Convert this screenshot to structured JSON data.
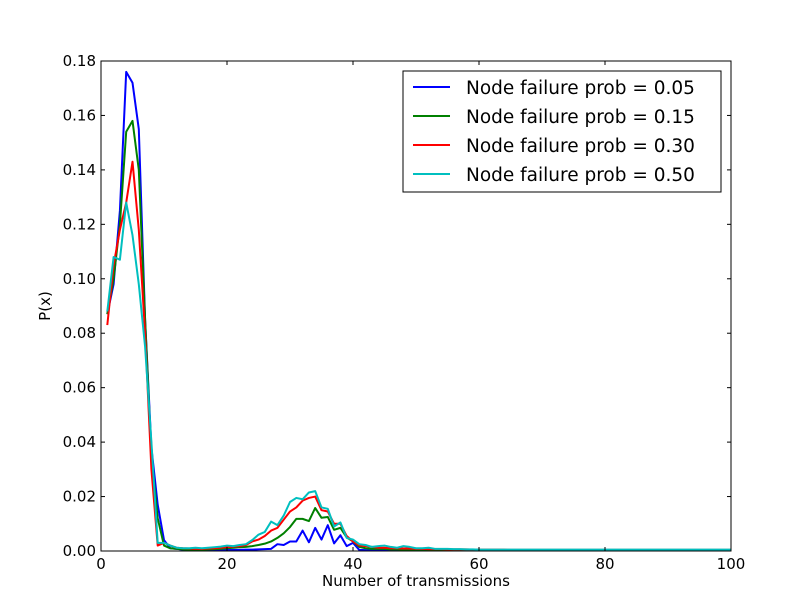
{
  "chart_data": {
    "type": "line",
    "title": "",
    "xlabel": "Number of transmissions",
    "ylabel": "P(x)",
    "xlim": [
      0,
      100
    ],
    "ylim": [
      0,
      0.18
    ],
    "xticks": [
      "0",
      "20",
      "40",
      "60",
      "80",
      "100"
    ],
    "yticks": [
      "0.00",
      "0.02",
      "0.04",
      "0.06",
      "0.08",
      "0.10",
      "0.12",
      "0.14",
      "0.16",
      "0.18"
    ],
    "grid": false,
    "legend_position": "top-right",
    "x": [
      1,
      2,
      3,
      4,
      5,
      6,
      7,
      8,
      9,
      10,
      11,
      12,
      13,
      14,
      15,
      16,
      17,
      18,
      19,
      20,
      21,
      22,
      23,
      24,
      25,
      26,
      27,
      28,
      29,
      30,
      31,
      32,
      33,
      34,
      35,
      36,
      37,
      38,
      39,
      40,
      41,
      42,
      43,
      44,
      45,
      46,
      47,
      48,
      49,
      50,
      51,
      52,
      53,
      54,
      55,
      56,
      57,
      58,
      59,
      60,
      61,
      62,
      63,
      64,
      65,
      66,
      67,
      68,
      69,
      70,
      71,
      72,
      73,
      74,
      75,
      76,
      77,
      78,
      79,
      80,
      81,
      82,
      83,
      84,
      85,
      86,
      87,
      88,
      89,
      90,
      91,
      92,
      93,
      94,
      95,
      96,
      97,
      98,
      99,
      100
    ],
    "series": [
      {
        "name": "Node failure prob = 0.05",
        "color": "#0000ff",
        "values": [
          0.087,
          0.098,
          0.125,
          0.176,
          0.172,
          0.155,
          0.085,
          0.038,
          0.017,
          0.004,
          0.001,
          0.0008,
          0.0005,
          0.0004,
          0.0004,
          0.0003,
          0.0003,
          0.0003,
          0.0003,
          0.0004,
          0.0004,
          0.0004,
          0.0005,
          0.0005,
          0.0006,
          0.0007,
          0.0008,
          0.0025,
          0.0022,
          0.0035,
          0.0035,
          0.0075,
          0.0032,
          0.0085,
          0.0042,
          0.0095,
          0.0028,
          0.0058,
          0.0018,
          0.003,
          0.0004,
          0.0003,
          0.0002,
          0.0002,
          0.0002,
          0.0002,
          0.0002,
          0.0002,
          0.0002,
          0.0002,
          0.0002,
          0.0002,
          0.0002,
          0.0002,
          0.0002,
          0.0002,
          0.0002,
          0.0002,
          0.0002,
          0.0002,
          0.0002,
          0.0002,
          0.0002,
          0.0002,
          0.0002,
          0.0002,
          0.0002,
          0.0002,
          0.0002,
          0.0002,
          0.0002,
          0.0002,
          0.0002,
          0.0002,
          0.0002,
          0.0002,
          0.0002,
          0.0002,
          0.0002,
          0.0002,
          0.0002,
          0.0002,
          0.0002,
          0.0002,
          0.0002,
          0.0002,
          0.0002,
          0.0002,
          0.0002,
          0.0002,
          0.0002,
          0.0002,
          0.0002,
          0.0002,
          0.0002,
          0.0002,
          0.0002,
          0.0002,
          0.0002,
          0.0002
        ]
      },
      {
        "name": "Node failure prob = 0.15",
        "color": "#008000",
        "values": [
          0.087,
          0.1,
          0.12,
          0.154,
          0.158,
          0.14,
          0.085,
          0.035,
          0.012,
          0.002,
          0.001,
          0.0008,
          0.0006,
          0.0005,
          0.0005,
          0.0005,
          0.0006,
          0.0007,
          0.0008,
          0.001,
          0.0012,
          0.0014,
          0.0015,
          0.0018,
          0.0022,
          0.0027,
          0.0035,
          0.0048,
          0.0065,
          0.0088,
          0.0118,
          0.0118,
          0.011,
          0.0158,
          0.0122,
          0.0125,
          0.0078,
          0.0085,
          0.005,
          0.0035,
          0.0015,
          0.001,
          0.0008,
          0.0008,
          0.0008,
          0.0006,
          0.0006,
          0.0005,
          0.0005,
          0.0004,
          0.0004,
          0.0004,
          0.0004,
          0.0004,
          0.0004,
          0.0004,
          0.0004,
          0.0003,
          0.0003,
          0.0003,
          0.0003,
          0.0003,
          0.0003,
          0.0003,
          0.0003,
          0.0003,
          0.0003,
          0.0003,
          0.0003,
          0.0003,
          0.0003,
          0.0003,
          0.0003,
          0.0003,
          0.0003,
          0.0003,
          0.0003,
          0.0003,
          0.0003,
          0.0003,
          0.0003,
          0.0003,
          0.0003,
          0.0003,
          0.0003,
          0.0003,
          0.0003,
          0.0003,
          0.0003,
          0.0003,
          0.0003,
          0.0003,
          0.0003,
          0.0003,
          0.0003,
          0.0003,
          0.0003,
          0.0003,
          0.0003,
          0.0003
        ]
      },
      {
        "name": "Node failure prob = 0.30",
        "color": "#ff0000",
        "values": [
          0.083,
          0.105,
          0.118,
          0.128,
          0.143,
          0.118,
          0.08,
          0.03,
          0.002,
          0.003,
          0.002,
          0.0012,
          0.001,
          0.0009,
          0.0008,
          0.0008,
          0.0009,
          0.001,
          0.0012,
          0.0014,
          0.0016,
          0.0018,
          0.0022,
          0.0035,
          0.0042,
          0.0055,
          0.0075,
          0.0085,
          0.0115,
          0.0145,
          0.016,
          0.0185,
          0.0195,
          0.02,
          0.015,
          0.0145,
          0.01,
          0.01,
          0.0055,
          0.0035,
          0.002,
          0.0018,
          0.0015,
          0.0012,
          0.0012,
          0.001,
          0.001,
          0.0009,
          0.0009,
          0.0008,
          0.0008,
          0.0007,
          0.0007,
          0.0007,
          0.0006,
          0.0006,
          0.0006,
          0.0006,
          0.0005,
          0.0005,
          0.0005,
          0.0005,
          0.0005,
          0.0005,
          0.0004,
          0.0004,
          0.0004,
          0.0004,
          0.0004,
          0.0004,
          0.0004,
          0.0004,
          0.0004,
          0.0004,
          0.0004,
          0.0004,
          0.0004,
          0.0004,
          0.0004,
          0.0004,
          0.0004,
          0.0004,
          0.0004,
          0.0004,
          0.0004,
          0.0004,
          0.0004,
          0.0004,
          0.0004,
          0.0004,
          0.0004,
          0.0004,
          0.0004,
          0.0004,
          0.0004,
          0.0004,
          0.0004,
          0.0004,
          0.0004,
          0.0004
        ]
      },
      {
        "name": "Node failure prob = 0.50",
        "color": "#00bfbf",
        "values": [
          0.088,
          0.108,
          0.107,
          0.128,
          0.116,
          0.098,
          0.075,
          0.04,
          0.003,
          0.003,
          0.002,
          0.0012,
          0.001,
          0.001,
          0.0012,
          0.001,
          0.0012,
          0.0014,
          0.0016,
          0.002,
          0.0018,
          0.0022,
          0.0025,
          0.004,
          0.006,
          0.007,
          0.0108,
          0.0095,
          0.013,
          0.018,
          0.0195,
          0.019,
          0.0215,
          0.022,
          0.016,
          0.0155,
          0.009,
          0.0105,
          0.0048,
          0.0042,
          0.0025,
          0.0022,
          0.0015,
          0.0018,
          0.002,
          0.0015,
          0.0012,
          0.0018,
          0.0015,
          0.001,
          0.001,
          0.0012,
          0.0008,
          0.0008,
          0.0008,
          0.0007,
          0.0007,
          0.0006,
          0.0006,
          0.0005,
          0.0005,
          0.0005,
          0.0005,
          0.0005,
          0.0005,
          0.0005,
          0.0005,
          0.0005,
          0.0005,
          0.0005,
          0.0005,
          0.0005,
          0.0005,
          0.0005,
          0.0005,
          0.0005,
          0.0005,
          0.0005,
          0.0005,
          0.0005,
          0.0005,
          0.0005,
          0.0005,
          0.0005,
          0.0005,
          0.0005,
          0.0005,
          0.0005,
          0.0005,
          0.0005,
          0.0005,
          0.0005,
          0.0005,
          0.0005,
          0.0005,
          0.0005,
          0.0005,
          0.0005,
          0.0005,
          0.0005
        ]
      }
    ]
  }
}
